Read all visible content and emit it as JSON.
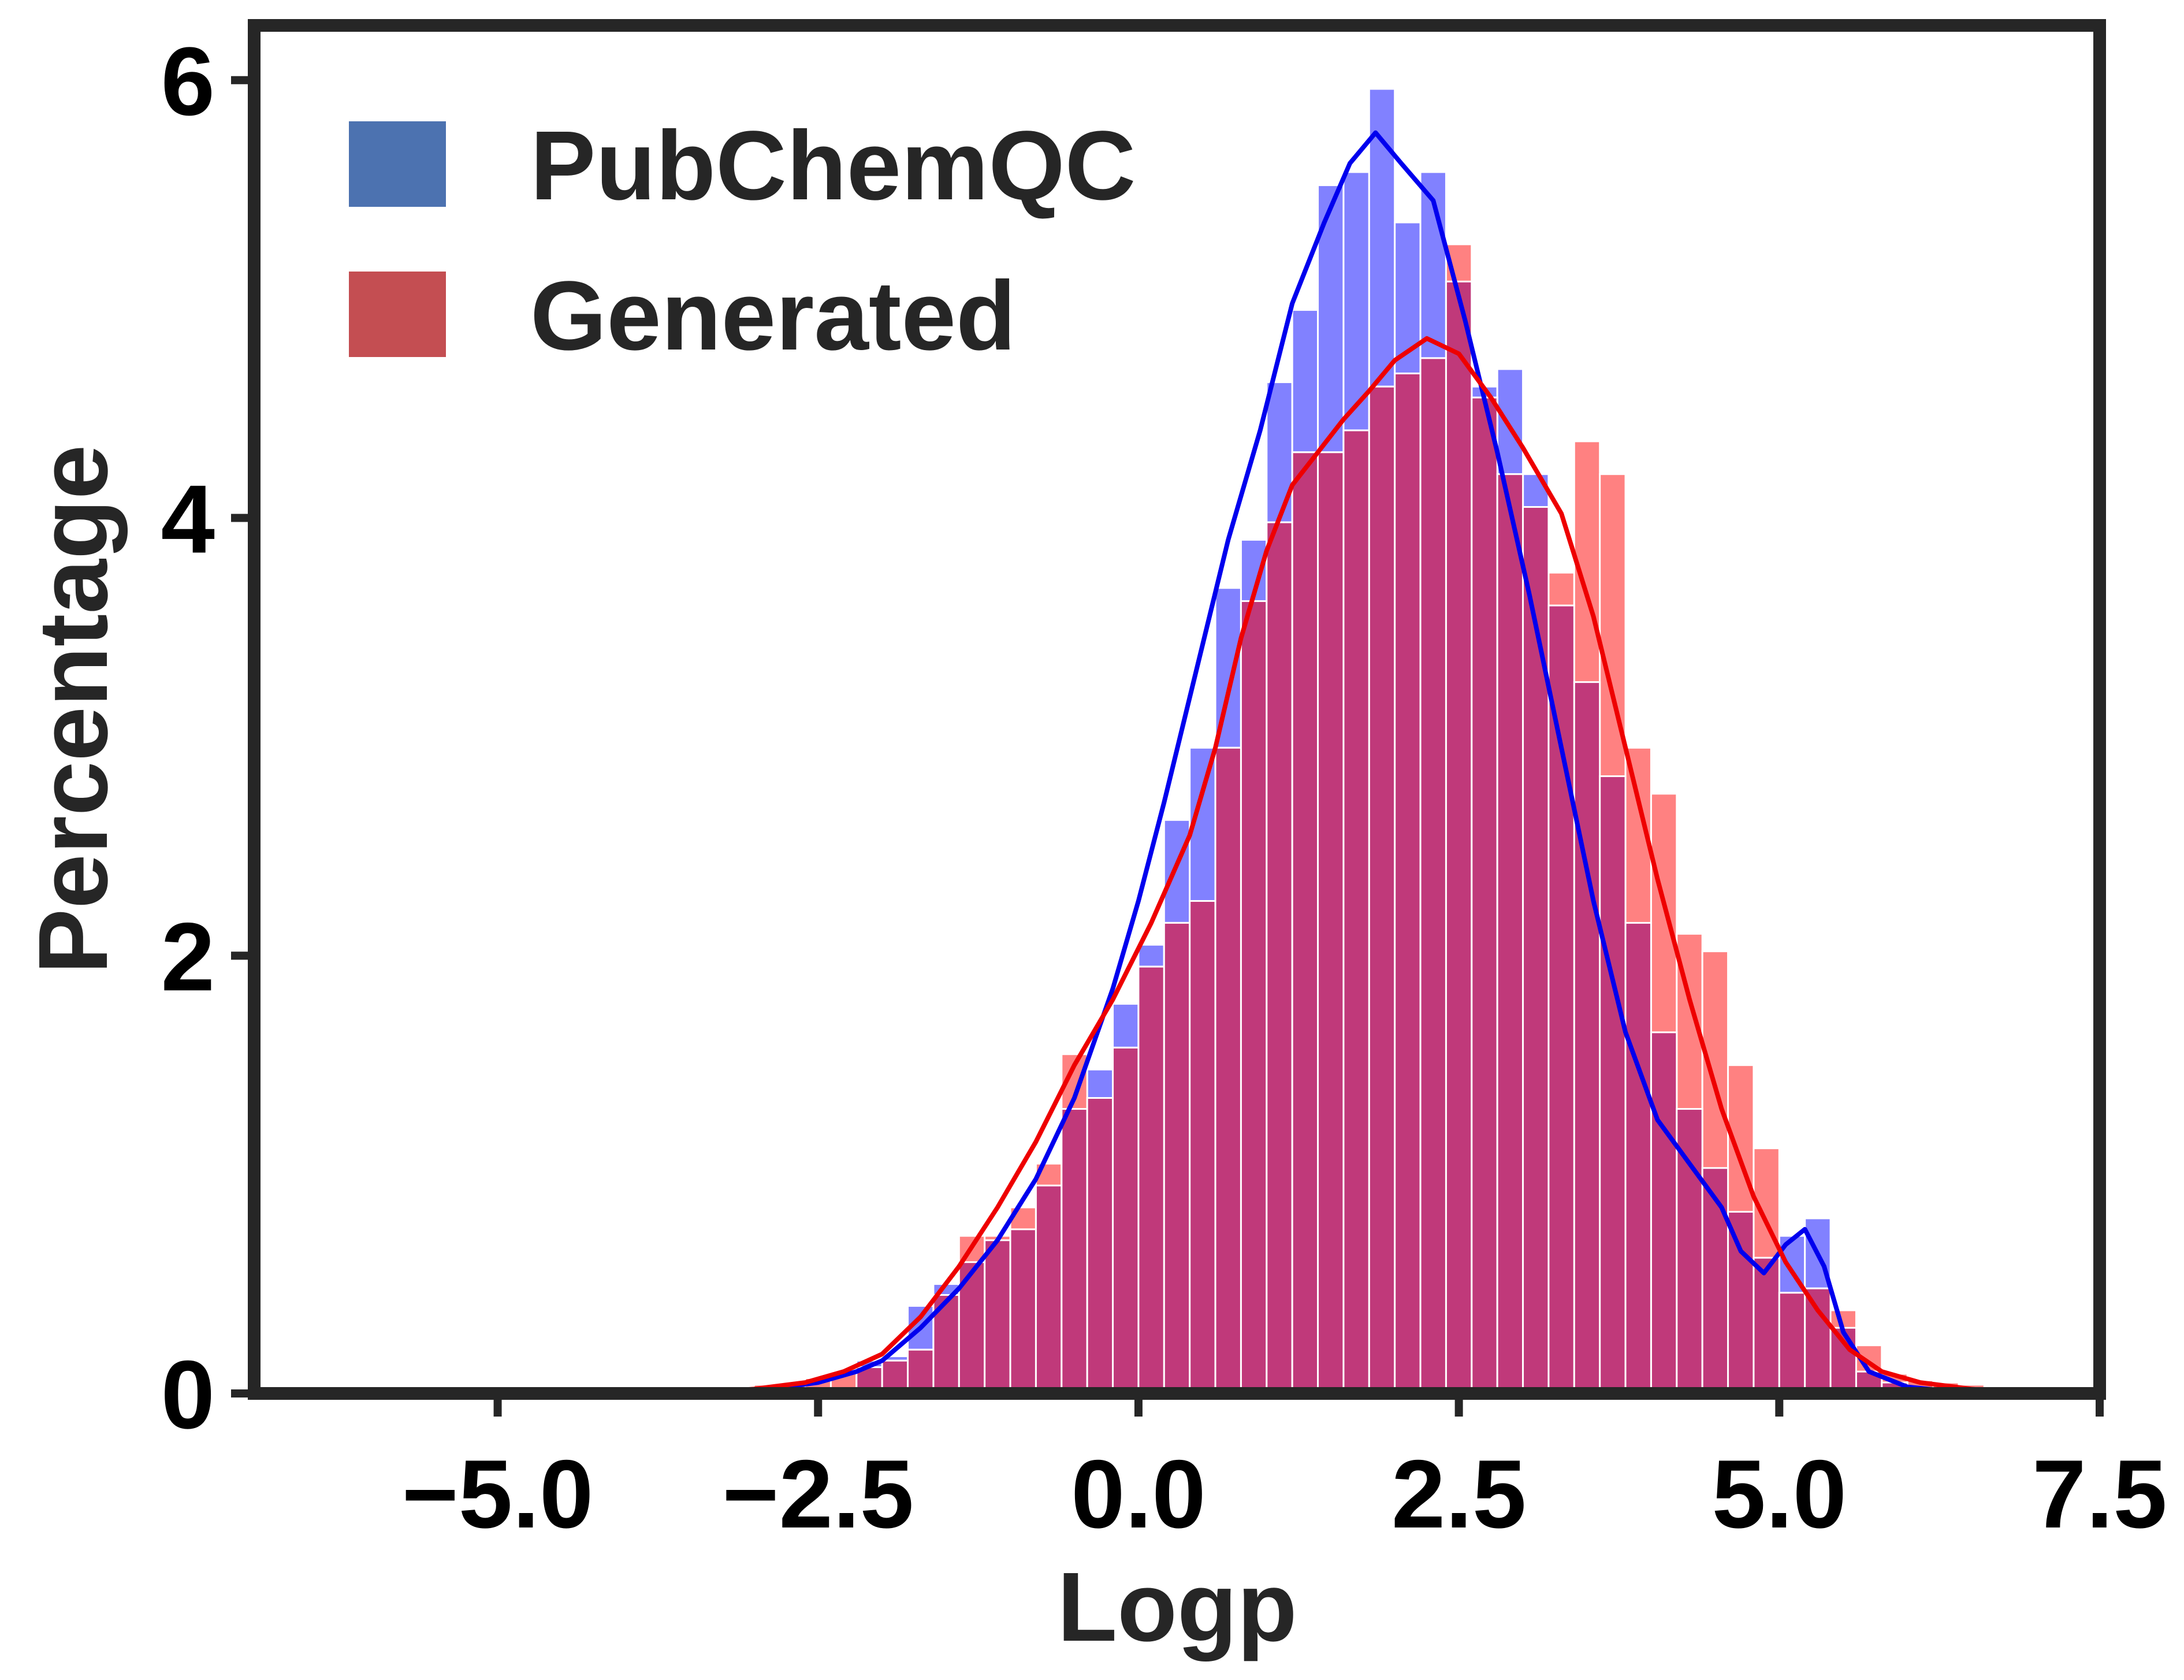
{
  "chart_data": {
    "type": "histogram",
    "title": "",
    "xlabel": "Logp",
    "ylabel": "Percentage",
    "xlim": [
      -6.9,
      7.5
    ],
    "ylim": [
      0,
      6.25
    ],
    "xticks": [
      -5.0,
      -2.5,
      0.0,
      2.5,
      5.0,
      7.5
    ],
    "xtick_labels": [
      "−5.0",
      "−2.5",
      "0.0",
      "2.5",
      "5.0",
      "7.5"
    ],
    "yticks": [
      0,
      2,
      4,
      6
    ],
    "ytick_labels": [
      "0",
      "2",
      "4",
      "6"
    ],
    "grid": false,
    "legend_position": "top-left",
    "bin_width": 0.2,
    "series": [
      {
        "name": "PubChemQC",
        "legend_color": "#4c72b0",
        "bar_color": "#7a7aff",
        "kde_color": "#0000ee",
        "bins": [
          [
            -2.2,
            0.15
          ],
          [
            -2.0,
            0.17
          ],
          [
            -1.8,
            0.4
          ],
          [
            -1.6,
            0.5
          ],
          [
            -1.4,
            0.6
          ],
          [
            -1.2,
            0.7
          ],
          [
            -1.0,
            0.75
          ],
          [
            -0.8,
            0.95
          ],
          [
            -0.6,
            1.3
          ],
          [
            -0.4,
            1.48
          ],
          [
            -0.2,
            1.78
          ],
          [
            0.0,
            2.05
          ],
          [
            0.2,
            2.62
          ],
          [
            0.4,
            2.95
          ],
          [
            0.6,
            3.68
          ],
          [
            0.8,
            3.9
          ],
          [
            1.0,
            4.62
          ],
          [
            1.2,
            4.95
          ],
          [
            1.4,
            5.52
          ],
          [
            1.6,
            5.58
          ],
          [
            1.8,
            5.96
          ],
          [
            2.0,
            5.35
          ],
          [
            2.2,
            5.58
          ],
          [
            2.4,
            5.08
          ],
          [
            2.6,
            4.6
          ],
          [
            2.8,
            4.68
          ],
          [
            3.0,
            4.2
          ],
          [
            3.2,
            3.6
          ],
          [
            3.4,
            3.25
          ],
          [
            3.6,
            2.82
          ],
          [
            3.8,
            2.15
          ],
          [
            4.0,
            1.65
          ],
          [
            4.2,
            1.3
          ],
          [
            4.4,
            1.03
          ],
          [
            4.6,
            0.83
          ],
          [
            4.8,
            0.62
          ],
          [
            5.0,
            0.72
          ],
          [
            5.2,
            0.8
          ],
          [
            5.4,
            0.3
          ],
          [
            5.6,
            0.1
          ],
          [
            5.8,
            0.05
          ]
        ],
        "kde": [
          [
            -3.5,
            0.0
          ],
          [
            -3.0,
            0.01
          ],
          [
            -2.5,
            0.05
          ],
          [
            -2.2,
            0.1
          ],
          [
            -2.0,
            0.15
          ],
          [
            -1.7,
            0.3
          ],
          [
            -1.4,
            0.48
          ],
          [
            -1.1,
            0.7
          ],
          [
            -0.8,
            0.98
          ],
          [
            -0.5,
            1.35
          ],
          [
            -0.2,
            1.85
          ],
          [
            0.0,
            2.25
          ],
          [
            0.2,
            2.7
          ],
          [
            0.45,
            3.3
          ],
          [
            0.7,
            3.9
          ],
          [
            0.95,
            4.4
          ],
          [
            1.2,
            4.98
          ],
          [
            1.45,
            5.35
          ],
          [
            1.65,
            5.62
          ],
          [
            1.85,
            5.76
          ],
          [
            2.05,
            5.62
          ],
          [
            2.3,
            5.45
          ],
          [
            2.55,
            4.9
          ],
          [
            2.8,
            4.3
          ],
          [
            3.05,
            3.65
          ],
          [
            3.3,
            2.95
          ],
          [
            3.55,
            2.25
          ],
          [
            3.8,
            1.65
          ],
          [
            4.05,
            1.25
          ],
          [
            4.3,
            1.05
          ],
          [
            4.55,
            0.85
          ],
          [
            4.7,
            0.65
          ],
          [
            4.88,
            0.55
          ],
          [
            5.05,
            0.68
          ],
          [
            5.2,
            0.75
          ],
          [
            5.35,
            0.58
          ],
          [
            5.5,
            0.28
          ],
          [
            5.7,
            0.1
          ],
          [
            6.0,
            0.03
          ],
          [
            6.5,
            0.0
          ]
        ]
      },
      {
        "name": "Generated",
        "legend_color": "#c44e52",
        "bar_color": "#ff7a7a",
        "kde_color": "#ee0000",
        "bins": [
          [
            -3.4,
            0.02
          ],
          [
            -3.2,
            0.03
          ],
          [
            -3.0,
            0.04
          ],
          [
            -2.8,
            0.05
          ],
          [
            -2.6,
            0.07
          ],
          [
            -2.4,
            0.1
          ],
          [
            -2.2,
            0.12
          ],
          [
            -2.0,
            0.15
          ],
          [
            -1.8,
            0.2
          ],
          [
            -1.6,
            0.45
          ],
          [
            -1.4,
            0.72
          ],
          [
            -1.2,
            0.72
          ],
          [
            -1.0,
            0.85
          ],
          [
            -0.8,
            1.05
          ],
          [
            -0.6,
            1.55
          ],
          [
            -0.4,
            1.35
          ],
          [
            -0.2,
            1.58
          ],
          [
            0.0,
            1.95
          ],
          [
            0.2,
            2.15
          ],
          [
            0.4,
            2.25
          ],
          [
            0.6,
            2.95
          ],
          [
            0.8,
            3.62
          ],
          [
            1.0,
            3.98
          ],
          [
            1.2,
            4.3
          ],
          [
            1.4,
            4.3
          ],
          [
            1.6,
            4.4
          ],
          [
            1.8,
            4.6
          ],
          [
            2.0,
            4.66
          ],
          [
            2.2,
            4.73
          ],
          [
            2.4,
            5.25
          ],
          [
            2.6,
            4.55
          ],
          [
            2.8,
            4.2
          ],
          [
            3.0,
            4.05
          ],
          [
            3.2,
            3.75
          ],
          [
            3.4,
            4.35
          ],
          [
            3.6,
            4.2
          ],
          [
            3.8,
            2.95
          ],
          [
            4.0,
            2.74
          ],
          [
            4.2,
            2.1
          ],
          [
            4.4,
            2.02
          ],
          [
            4.6,
            1.5
          ],
          [
            4.8,
            1.12
          ],
          [
            5.0,
            0.46
          ],
          [
            5.2,
            0.48
          ],
          [
            5.4,
            0.38
          ],
          [
            5.6,
            0.22
          ],
          [
            5.8,
            0.09
          ],
          [
            6.0,
            0.06
          ],
          [
            6.2,
            0.05
          ],
          [
            6.4,
            0.04
          ],
          [
            6.6,
            0.03
          ],
          [
            6.8,
            0.01
          ]
        ],
        "kde": [
          [
            -3.5,
            0.0
          ],
          [
            -3.0,
            0.02
          ],
          [
            -2.6,
            0.05
          ],
          [
            -2.3,
            0.1
          ],
          [
            -2.0,
            0.18
          ],
          [
            -1.7,
            0.35
          ],
          [
            -1.4,
            0.58
          ],
          [
            -1.1,
            0.85
          ],
          [
            -0.8,
            1.15
          ],
          [
            -0.5,
            1.5
          ],
          [
            -0.2,
            1.8
          ],
          [
            0.1,
            2.15
          ],
          [
            0.4,
            2.55
          ],
          [
            0.6,
            2.95
          ],
          [
            0.8,
            3.45
          ],
          [
            1.0,
            3.85
          ],
          [
            1.2,
            4.15
          ],
          [
            1.4,
            4.3
          ],
          [
            1.6,
            4.45
          ],
          [
            1.8,
            4.58
          ],
          [
            2.0,
            4.72
          ],
          [
            2.25,
            4.82
          ],
          [
            2.5,
            4.75
          ],
          [
            2.75,
            4.55
          ],
          [
            3.0,
            4.32
          ],
          [
            3.3,
            4.02
          ],
          [
            3.55,
            3.55
          ],
          [
            3.8,
            2.95
          ],
          [
            4.05,
            2.35
          ],
          [
            4.3,
            1.8
          ],
          [
            4.55,
            1.3
          ],
          [
            4.8,
            0.9
          ],
          [
            5.05,
            0.6
          ],
          [
            5.3,
            0.38
          ],
          [
            5.55,
            0.2
          ],
          [
            5.8,
            0.1
          ],
          [
            6.1,
            0.05
          ],
          [
            6.5,
            0.02
          ],
          [
            6.9,
            0.0
          ]
        ]
      }
    ]
  }
}
